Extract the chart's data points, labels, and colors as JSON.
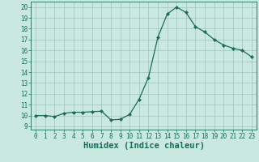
{
  "x": [
    0,
    1,
    2,
    3,
    4,
    5,
    6,
    7,
    8,
    9,
    10,
    11,
    12,
    13,
    14,
    15,
    16,
    17,
    18,
    19,
    20,
    21,
    22,
    23
  ],
  "y": [
    10.0,
    10.0,
    9.9,
    10.2,
    10.3,
    10.3,
    10.35,
    10.4,
    9.6,
    9.65,
    10.1,
    11.5,
    13.5,
    17.2,
    19.35,
    20.0,
    19.5,
    18.2,
    17.7,
    17.0,
    16.5,
    16.2,
    16.0,
    15.4
  ],
  "line_color": "#1a6b5a",
  "marker": "D",
  "marker_size": 2.2,
  "bg_color": "#c8e8e0",
  "grid_color": "#a0c4bc",
  "xlabel": "Humidex (Indice chaleur)",
  "ylim": [
    8.7,
    20.5
  ],
  "xlim": [
    -0.5,
    23.5
  ],
  "yticks": [
    9,
    10,
    11,
    12,
    13,
    14,
    15,
    16,
    17,
    18,
    19,
    20
  ],
  "xticks": [
    0,
    1,
    2,
    3,
    4,
    5,
    6,
    7,
    8,
    9,
    10,
    11,
    12,
    13,
    14,
    15,
    16,
    17,
    18,
    19,
    20,
    21,
    22,
    23
  ],
  "tick_fontsize": 5.5,
  "label_fontsize": 7.5
}
